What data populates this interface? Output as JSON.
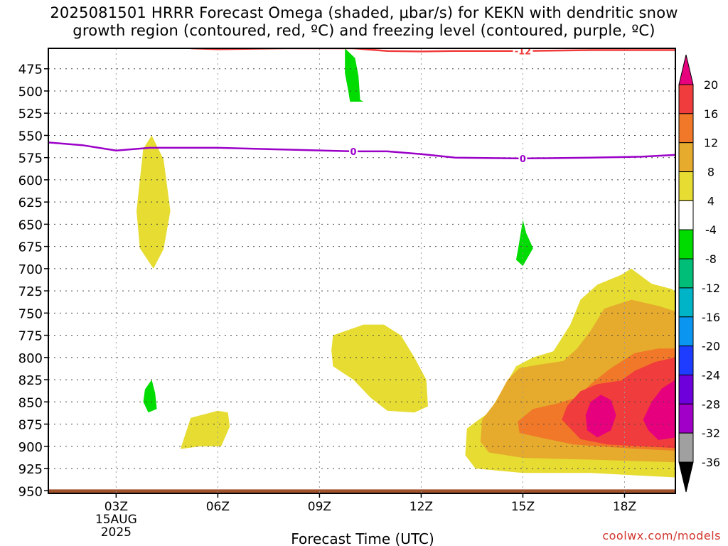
{
  "title": {
    "line1": "2025081501 HRRR Forecast Omega (shaded, μbar/s) for KEKN with dendritic snow",
    "line2": "growth region (contoured, red, ºC) and freezing level (contoured, purple, ºC)"
  },
  "credit": "coolwx.com/models",
  "chart_data": {
    "type": "time-height",
    "xlabel": "Forecast Time (UTC)",
    "x_range_hours": [
      1,
      19.5
    ],
    "x_ticks": [
      {
        "hour": 3,
        "label": "03Z",
        "sub": [
          "15AUG",
          "2025"
        ]
      },
      {
        "hour": 6,
        "label": "06Z"
      },
      {
        "hour": 9,
        "label": "09Z"
      },
      {
        "hour": 12,
        "label": "12Z"
      },
      {
        "hour": 15,
        "label": "15Z"
      },
      {
        "hour": 18,
        "label": "18Z"
      }
    ],
    "y_range_hpa": [
      452,
      953
    ],
    "y_ticks": [
      475,
      500,
      525,
      550,
      575,
      600,
      625,
      650,
      675,
      700,
      725,
      750,
      775,
      800,
      825,
      850,
      875,
      900,
      925,
      950
    ],
    "colorbar": {
      "labels": [
        20,
        16,
        12,
        8,
        4,
        -4,
        -8,
        -12,
        -16,
        -20,
        -24,
        -28,
        -32,
        -36
      ],
      "colors": [
        "#f03c3c",
        "#f07828",
        "#e6aa2d",
        "#e6dc32",
        "#ffffff",
        "#00dc00",
        "#00be78",
        "#00b4c8",
        "#0a96f0",
        "#1e3cff",
        "#6e00dc",
        "#a000c8",
        "#a0a0a0"
      ],
      "top_color": "#e6007e",
      "bottom_color": "#000000"
    },
    "contours": {
      "freezing_level": {
        "color": "#9b00c8",
        "label": "0",
        "points": [
          [
            1,
            558
          ],
          [
            2,
            561
          ],
          [
            3,
            567
          ],
          [
            4,
            564
          ],
          [
            6,
            564
          ],
          [
            8,
            566
          ],
          [
            10,
            568
          ],
          [
            11,
            568
          ],
          [
            12,
            571
          ],
          [
            13,
            575
          ],
          [
            15,
            576
          ],
          [
            17,
            575
          ],
          [
            18.5,
            574
          ],
          [
            19.5,
            572
          ]
        ],
        "label_hours": [
          10,
          15
        ]
      },
      "dendritic": {
        "color": "#f03c3c",
        "label": "-12",
        "points": [
          [
            5.2,
            452
          ],
          [
            6,
            453
          ],
          [
            7,
            452.5
          ],
          [
            8,
            452
          ],
          [
            9,
            452
          ],
          [
            10,
            452
          ],
          [
            11,
            455
          ],
          [
            12,
            455.5
          ],
          [
            13,
            455
          ],
          [
            15,
            455
          ],
          [
            16,
            454.5
          ],
          [
            17,
            454
          ],
          [
            18,
            454
          ],
          [
            19.5,
            454
          ]
        ],
        "label_hours": [
          15
        ]
      }
    },
    "omega_regions": [
      {
        "level": "4",
        "color": "#e6dc32",
        "points": [
          [
            3.6,
            635
          ],
          [
            3.8,
            565
          ],
          [
            4.05,
            550
          ],
          [
            4.4,
            577
          ],
          [
            4.6,
            635
          ],
          [
            4.4,
            678
          ],
          [
            4.1,
            700
          ],
          [
            3.7,
            677
          ]
        ]
      },
      {
        "level": "-4",
        "color": "#00dc00",
        "points": [
          [
            9.75,
            452
          ],
          [
            10.05,
            463
          ],
          [
            10.15,
            483
          ],
          [
            10.2,
            510
          ],
          [
            10.3,
            512
          ],
          [
            9.9,
            512
          ],
          [
            9.85,
            500
          ],
          [
            9.75,
            480
          ]
        ]
      },
      {
        "level": "-4",
        "color": "#00dc00",
        "points": [
          [
            14.85,
            680
          ],
          [
            15,
            645
          ],
          [
            15.1,
            660
          ],
          [
            15.3,
            677
          ],
          [
            15.0,
            697
          ],
          [
            14.8,
            690
          ]
        ]
      },
      {
        "level": "-4",
        "color": "#00dc00",
        "points": [
          [
            3.8,
            850
          ],
          [
            3.85,
            836
          ],
          [
            4.05,
            825
          ],
          [
            4.15,
            840
          ],
          [
            4.2,
            858
          ],
          [
            3.95,
            862
          ]
        ]
      },
      {
        "level": "4",
        "color": "#e6dc32",
        "points": [
          [
            5.2,
            868
          ],
          [
            6.0,
            860
          ],
          [
            6.3,
            862
          ],
          [
            6.35,
            878
          ],
          [
            6.1,
            900
          ],
          [
            5.5,
            900
          ],
          [
            4.9,
            903
          ]
        ]
      },
      {
        "level": "4",
        "color": "#e6dc32",
        "points": [
          [
            9.4,
            775
          ],
          [
            10.3,
            763
          ],
          [
            10.9,
            763
          ],
          [
            11.4,
            775
          ],
          [
            11.8,
            800
          ],
          [
            12.15,
            825
          ],
          [
            12.2,
            855
          ],
          [
            11.8,
            862
          ],
          [
            11.0,
            860
          ],
          [
            10.5,
            845
          ],
          [
            10.0,
            825
          ],
          [
            9.4,
            810
          ],
          [
            9.35,
            792
          ]
        ]
      },
      {
        "level": "4",
        "color": "#e6dc32",
        "points": [
          [
            13.35,
            880
          ],
          [
            13.7,
            870
          ],
          [
            14.0,
            862
          ],
          [
            14.5,
            830
          ],
          [
            14.8,
            810
          ],
          [
            15.3,
            800
          ],
          [
            15.9,
            793
          ],
          [
            16.4,
            763
          ],
          [
            16.7,
            735
          ],
          [
            17.2,
            718
          ],
          [
            17.9,
            707
          ],
          [
            18.2,
            700
          ],
          [
            18.8,
            717
          ],
          [
            19.4,
            723
          ],
          [
            19.5,
            726
          ],
          [
            19.5,
            935
          ],
          [
            17.0,
            930
          ],
          [
            15.0,
            930
          ],
          [
            13.6,
            925
          ],
          [
            13.3,
            910
          ]
        ]
      },
      {
        "level": "8",
        "color": "#e6aa2d",
        "points": [
          [
            13.8,
            870
          ],
          [
            14.2,
            850
          ],
          [
            14.55,
            825
          ],
          [
            14.9,
            812
          ],
          [
            15.5,
            808
          ],
          [
            16.2,
            804
          ],
          [
            16.6,
            790
          ],
          [
            17.0,
            770
          ],
          [
            17.4,
            745
          ],
          [
            18.2,
            735
          ],
          [
            19.0,
            742
          ],
          [
            19.5,
            748
          ],
          [
            19.5,
            918
          ],
          [
            17.0,
            915
          ],
          [
            15.0,
            913
          ],
          [
            14.0,
            907
          ],
          [
            13.75,
            895
          ]
        ]
      },
      {
        "level": "12",
        "color": "#e6aa2d",
        "points": [
          [
            14.15,
            875
          ],
          [
            14.6,
            848
          ],
          [
            14.9,
            835
          ],
          [
            15.4,
            830
          ],
          [
            16.1,
            822
          ],
          [
            16.7,
            808
          ],
          [
            17.3,
            786
          ],
          [
            18.0,
            762
          ],
          [
            18.8,
            766
          ],
          [
            19.5,
            768
          ],
          [
            19.5,
            910
          ],
          [
            17.0,
            905
          ],
          [
            15.5,
            900
          ],
          [
            14.4,
            896
          ]
        ]
      },
      {
        "level": "16",
        "color": "#f07828",
        "points": [
          [
            14.85,
            872
          ],
          [
            15.3,
            858
          ],
          [
            16.0,
            852
          ],
          [
            16.6,
            845
          ],
          [
            17.0,
            830
          ],
          [
            17.6,
            812
          ],
          [
            18.3,
            795
          ],
          [
            19.0,
            790
          ],
          [
            19.5,
            790
          ],
          [
            19.5,
            905
          ],
          [
            18.0,
            902
          ],
          [
            16.5,
            898
          ],
          [
            15.5,
            890
          ],
          [
            14.9,
            885
          ]
        ]
      },
      {
        "level": "20",
        "color": "#f03c3c",
        "points": [
          [
            16.15,
            870
          ],
          [
            16.3,
            855
          ],
          [
            16.7,
            838
          ],
          [
            17.2,
            830
          ],
          [
            17.9,
            826
          ],
          [
            18.3,
            815
          ],
          [
            18.9,
            805
          ],
          [
            19.5,
            800
          ],
          [
            19.5,
            902
          ],
          [
            18.5,
            900
          ],
          [
            17.5,
            898
          ],
          [
            16.7,
            892
          ]
        ]
      },
      {
        "level": "24",
        "color": "#e6007e",
        "points": [
          [
            16.85,
            865
          ],
          [
            17.0,
            850
          ],
          [
            17.3,
            842
          ],
          [
            17.6,
            848
          ],
          [
            17.75,
            865
          ],
          [
            17.6,
            882
          ],
          [
            17.2,
            890
          ],
          [
            16.9,
            882
          ]
        ]
      },
      {
        "level": "24",
        "color": "#e6007e",
        "points": [
          [
            18.55,
            870
          ],
          [
            18.8,
            850
          ],
          [
            19.1,
            835
          ],
          [
            19.5,
            825
          ],
          [
            19.5,
            890
          ],
          [
            19.0,
            893
          ],
          [
            18.7,
            882
          ]
        ]
      }
    ],
    "ground": {
      "color": "#a0522d",
      "top_hpa": 948.5
    }
  }
}
